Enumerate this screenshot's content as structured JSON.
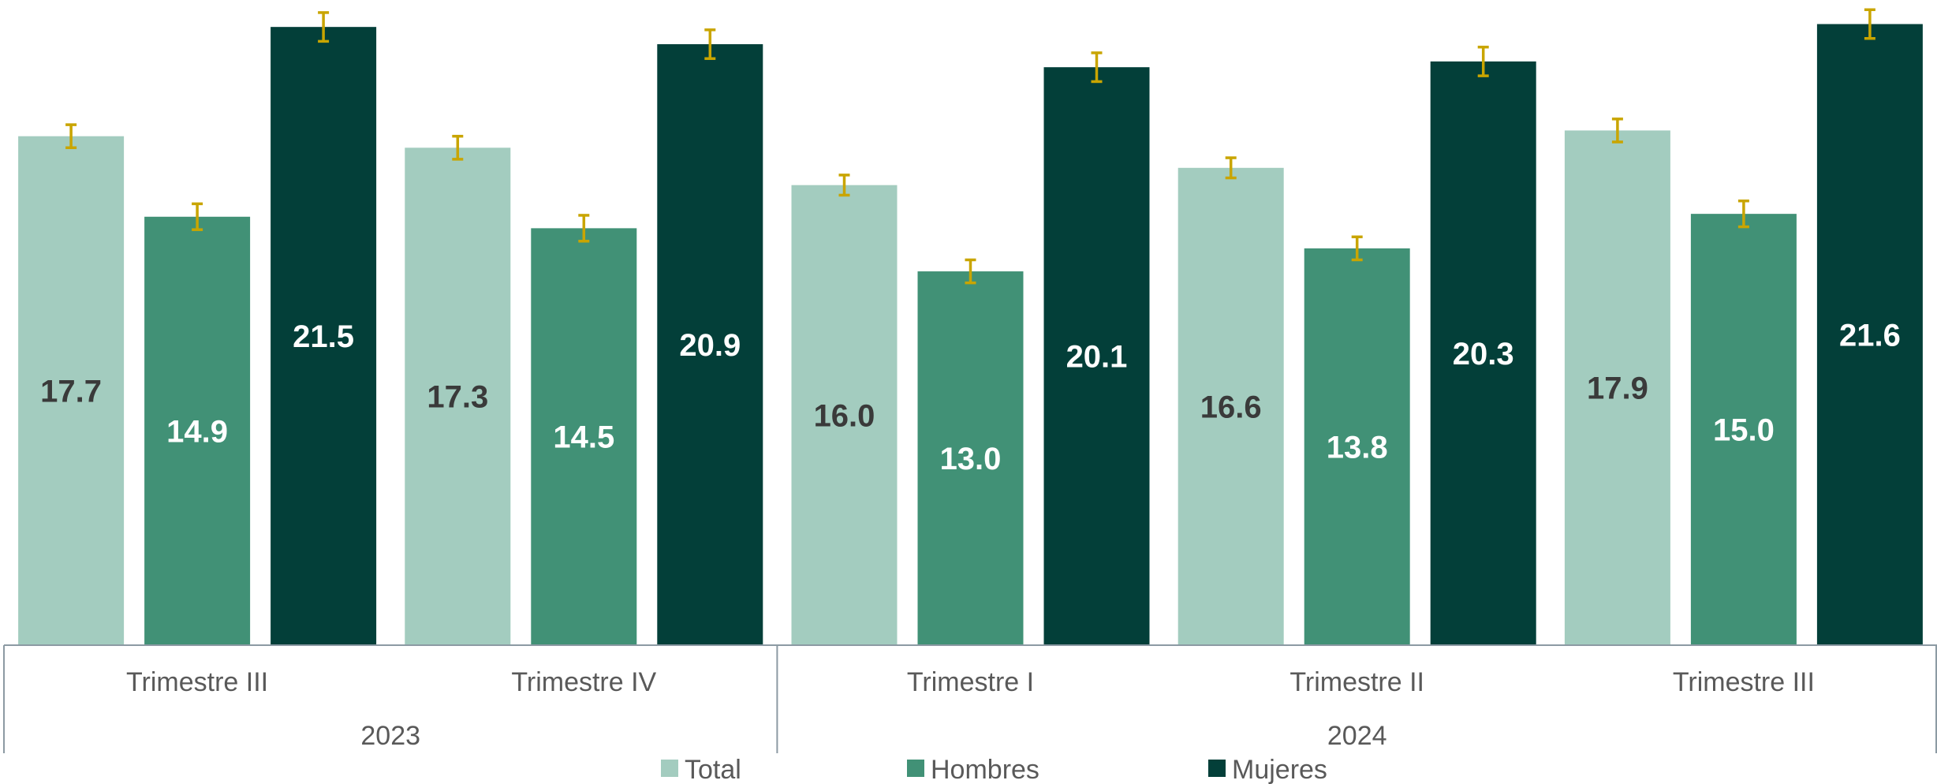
{
  "chart_data": {
    "type": "bar",
    "groups": [
      {
        "label": "2023",
        "categories": [
          "Trimestre III",
          "Trimestre IV"
        ]
      },
      {
        "label": "2024",
        "categories": [
          "Trimestre I",
          "Trimestre II",
          "Trimestre III"
        ]
      }
    ],
    "categories": [
      "Trimestre III",
      "Trimestre IV",
      "Trimestre I",
      "Trimestre II",
      "Trimestre III"
    ],
    "series": [
      {
        "name": "Total",
        "values": [
          17.7,
          17.3,
          16.0,
          16.6,
          17.9
        ],
        "error": [
          0.4,
          0.4,
          0.35,
          0.35,
          0.4
        ],
        "color": "#a3ccbf",
        "label_color": "#3a3a3a"
      },
      {
        "name": "Hombres",
        "values": [
          14.9,
          14.5,
          13.0,
          13.8,
          15.0
        ],
        "error": [
          0.45,
          0.45,
          0.4,
          0.4,
          0.45
        ],
        "color": "#419176",
        "label_color": "#ffffff"
      },
      {
        "name": "Mujeres",
        "values": [
          21.5,
          20.9,
          20.1,
          20.3,
          21.6
        ],
        "error": [
          0.5,
          0.5,
          0.5,
          0.5,
          0.5
        ],
        "color": "#033f39",
        "label_color": "#ffffff"
      }
    ],
    "ylim": [
      0,
      22.3
    ],
    "error_bar_color": "#c9a500",
    "legend_position": "bottom",
    "grid": false,
    "title": "",
    "xlabel": "",
    "ylabel": ""
  }
}
